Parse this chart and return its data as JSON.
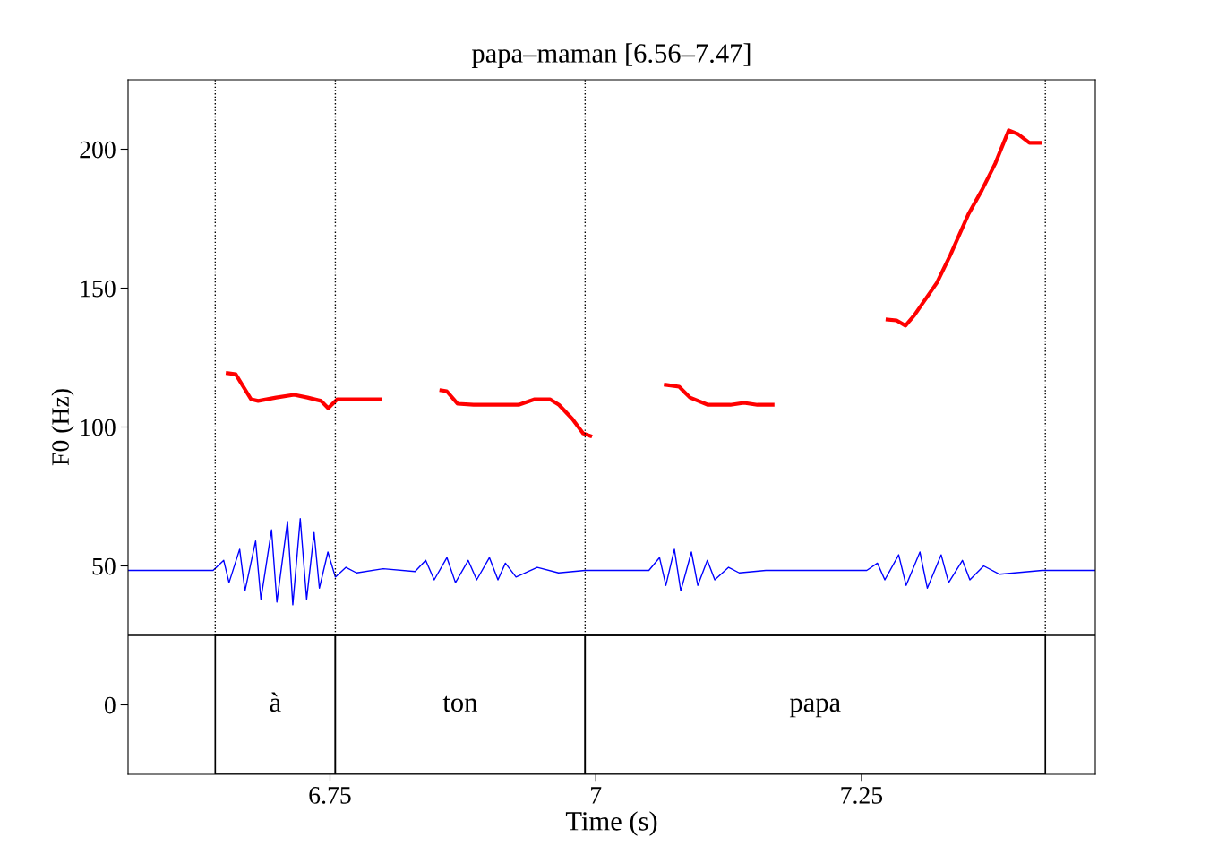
{
  "chart_data": {
    "type": "line",
    "title": "papa–maman [6.56–7.47]",
    "xlabel": "Time (s)",
    "ylabel": "F0 (Hz)",
    "xlim": [
      6.56,
      7.47
    ],
    "ylim": [
      -25,
      225
    ],
    "xticks": [
      6.75,
      7,
      7.25
    ],
    "yticks": [
      0,
      50,
      100,
      150,
      200
    ],
    "grid": false,
    "marker": "none",
    "series": [
      {
        "color": "#0000ff",
        "line_style": "solid",
        "x": [
          6.56,
          6.64,
          6.65,
          6.655,
          6.665,
          6.67,
          6.68,
          6.685,
          6.695,
          6.7,
          6.71,
          6.715,
          6.722,
          6.728,
          6.735,
          6.74,
          6.748,
          6.755,
          6.765,
          6.775,
          6.8,
          6.83,
          6.84,
          6.848,
          6.86,
          6.868,
          6.88,
          6.888,
          6.9,
          6.908,
          6.915,
          6.925,
          6.945,
          6.965,
          6.99,
          7.05,
          7.06,
          7.066,
          7.074,
          7.08,
          7.09,
          7.096,
          7.105,
          7.112,
          7.125,
          7.135,
          7.16,
          7.255,
          7.265,
          7.272,
          7.285,
          7.292,
          7.305,
          7.312,
          7.325,
          7.332,
          7.345,
          7.352,
          7.365,
          7.38,
          7.42,
          7.47
        ],
        "values": [
          48.4,
          48.4,
          52,
          44,
          56,
          41,
          59,
          38,
          63,
          37,
          66,
          36,
          67,
          38,
          62,
          42,
          55,
          46,
          49.5,
          47.5,
          49,
          48,
          52,
          45,
          53,
          44,
          52,
          45,
          53,
          45,
          51,
          46,
          49.5,
          47.5,
          48.4,
          48.4,
          53,
          43,
          56,
          41,
          55,
          43,
          52,
          45,
          49.5,
          47.5,
          48.4,
          48.4,
          51,
          45,
          54,
          43,
          55,
          42,
          54,
          44,
          52,
          45,
          50,
          47,
          48.4,
          48.4
        ]
      },
      {
        "color": "#ff0000",
        "line_style": "solid",
        "x": [
          6.6537,
          6.6613,
          6.6757,
          6.6824,
          6.6993,
          6.7162,
          6.7289,
          6.7416,
          6.7483,
          6.7568,
          6.7669,
          6.7973,
          6.82,
          6.8547,
          6.8598,
          6.8699,
          6.8851,
          6.9274,
          6.9426,
          6.9569,
          6.9654,
          6.978,
          6.9882,
          6.9949,
          7.03,
          7.0659,
          7.0785,
          7.0887,
          7.1056,
          7.1267,
          7.1394,
          7.152,
          7.1664,
          7.22,
          7.2745,
          7.283,
          7.2914,
          7.2998,
          7.3209,
          7.3336,
          7.3505,
          7.3632,
          7.3758,
          7.3885,
          7.397,
          7.408,
          7.4181
        ],
        "values": [
          119.4,
          119,
          110,
          109.4,
          110.6,
          111.6,
          110.6,
          109.4,
          106.8,
          110,
          110,
          110,
          null,
          113.2,
          112.9,
          108.4,
          108,
          108,
          110,
          110,
          108,
          102.9,
          97.7,
          96.8,
          null,
          115.2,
          114.5,
          110.6,
          108,
          108,
          108.7,
          108,
          108,
          null,
          138.7,
          138.4,
          136.5,
          140.3,
          151.9,
          161.9,
          176.5,
          185.2,
          194.8,
          206.8,
          205.5,
          202.3,
          202.3
        ]
      }
    ],
    "ref_lines": [
      {
        "axis": "y",
        "value": 25,
        "color": "#000000",
        "line_style": "solid"
      },
      {
        "axis": "x",
        "value": 6.642,
        "color": "#000000",
        "line_style": "dotted"
      },
      {
        "axis": "x",
        "value": 6.755,
        "color": "#000000",
        "line_style": "dotted"
      },
      {
        "axis": "x",
        "value": 6.99,
        "color": "#000000",
        "line_style": "dotted"
      },
      {
        "axis": "x",
        "value": 7.423,
        "color": "#000000",
        "line_style": "dotted"
      }
    ],
    "bands": [
      {
        "axis": "x",
        "from": 6.642,
        "to": 6.755,
        "label": "à",
        "color": "#ffffff"
      },
      {
        "axis": "x",
        "from": 6.755,
        "to": 6.99,
        "label": "ton",
        "color": "#ffffff"
      },
      {
        "axis": "x",
        "from": 6.99,
        "to": 7.423,
        "label": "papa",
        "color": "#ffffff"
      }
    ]
  }
}
